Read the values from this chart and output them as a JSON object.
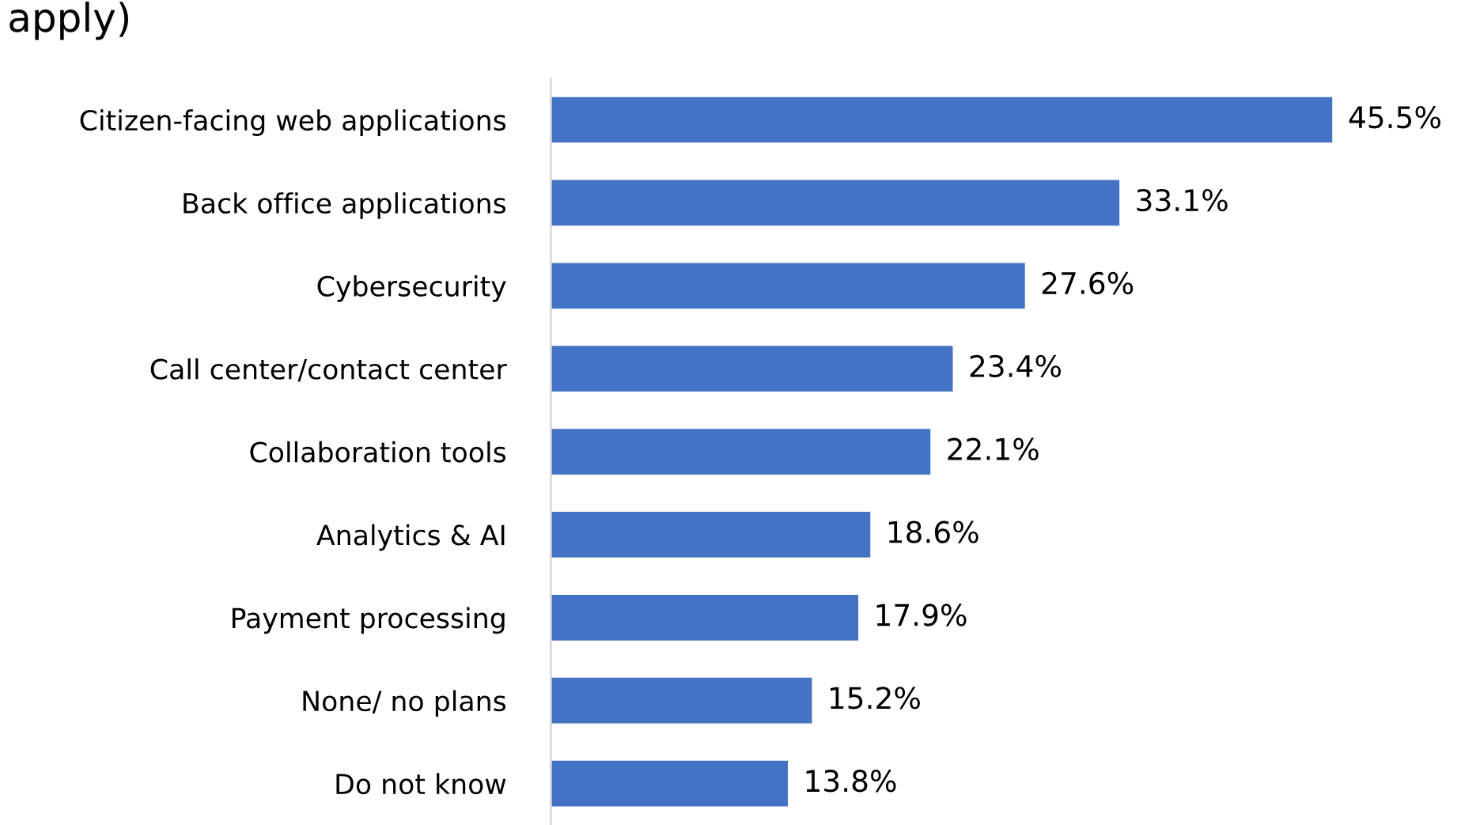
{
  "chart_data": {
    "type": "bar",
    "orientation": "horizontal",
    "title": "apply)",
    "categories": [
      "Citizen-facing web applications",
      "Back office applications",
      "Cybersecurity",
      "Call center/contact center",
      "Collaboration tools",
      "Analytics & AI",
      "Payment processing",
      "None/ no plans",
      "Do not know"
    ],
    "values": [
      45.5,
      33.1,
      27.6,
      23.4,
      22.1,
      18.6,
      17.9,
      15.2,
      13.8
    ],
    "value_labels": [
      "45.5%",
      "33.1%",
      "27.6%",
      "23.4%",
      "22.1%",
      "18.6%",
      "17.9%",
      "15.2%",
      "13.8%"
    ],
    "color": "#4472c4",
    "grid": false,
    "legend": false
  }
}
